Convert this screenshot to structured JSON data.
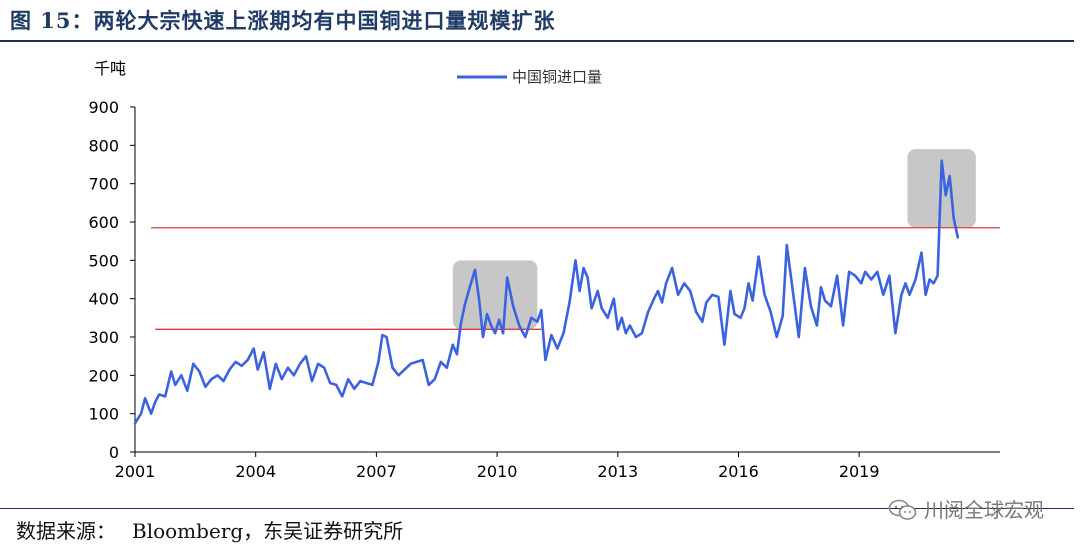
{
  "title": "图 15：两轮大宗快速上涨期均有中国铜进口量规模扩张",
  "source": {
    "label": "数据来源：",
    "text": "Bloomberg，东吴证券研究所"
  },
  "watermark": {
    "text": "川阅全球宏观",
    "icon": "wechat-icon"
  },
  "chart_data": {
    "type": "line",
    "ylabel": "千吨",
    "ylim": [
      0,
      900
    ],
    "yticks": [
      0,
      100,
      200,
      300,
      400,
      500,
      600,
      700,
      800,
      900
    ],
    "xlim": [
      2001,
      2022.5
    ],
    "xticks": [
      2001,
      2004,
      2007,
      2010,
      2013,
      2016,
      2019
    ],
    "xtick_labels": [
      "2001",
      "2004",
      "2007",
      "2010",
      "2013",
      "2016",
      "2019"
    ],
    "grid": false,
    "legend": "top-center",
    "series": [
      {
        "name": "中国铜进口量",
        "color": "#3b63e0",
        "x": [
          2001.0,
          2001.15,
          2001.25,
          2001.4,
          2001.5,
          2001.6,
          2001.75,
          2001.9,
          2002.0,
          2002.15,
          2002.3,
          2002.45,
          2002.6,
          2002.75,
          2002.9,
          2003.05,
          2003.2,
          2003.35,
          2003.5,
          2003.65,
          2003.8,
          2003.95,
          2004.05,
          2004.2,
          2004.35,
          2004.5,
          2004.65,
          2004.8,
          2004.95,
          2005.1,
          2005.25,
          2005.4,
          2005.55,
          2005.7,
          2005.85,
          2006.0,
          2006.15,
          2006.3,
          2006.45,
          2006.6,
          2006.75,
          2006.9,
          2007.05,
          2007.15,
          2007.25,
          2007.4,
          2007.55,
          2007.7,
          2007.85,
          2008.0,
          2008.15,
          2008.3,
          2008.45,
          2008.6,
          2008.75,
          2008.9,
          2009.0,
          2009.1,
          2009.2,
          2009.35,
          2009.45,
          2009.55,
          2009.65,
          2009.75,
          2009.85,
          2009.95,
          2010.05,
          2010.15,
          2010.25,
          2010.4,
          2010.55,
          2010.7,
          2010.85,
          2011.0,
          2011.1,
          2011.2,
          2011.35,
          2011.5,
          2011.65,
          2011.8,
          2011.95,
          2012.05,
          2012.15,
          2012.25,
          2012.35,
          2012.5,
          2012.6,
          2012.75,
          2012.9,
          2013.0,
          2013.1,
          2013.2,
          2013.3,
          2013.45,
          2013.6,
          2013.75,
          2013.9,
          2014.0,
          2014.1,
          2014.2,
          2014.35,
          2014.5,
          2014.65,
          2014.8,
          2014.95,
          2015.1,
          2015.2,
          2015.35,
          2015.5,
          2015.65,
          2015.8,
          2015.9,
          2016.05,
          2016.15,
          2016.25,
          2016.35,
          2016.5,
          2016.65,
          2016.8,
          2016.95,
          2017.1,
          2017.2,
          2017.35,
          2017.5,
          2017.65,
          2017.8,
          2017.95,
          2018.05,
          2018.15,
          2018.3,
          2018.45,
          2018.6,
          2018.75,
          2018.9,
          2019.05,
          2019.15,
          2019.3,
          2019.45,
          2019.6,
          2019.75,
          2019.9,
          2020.05,
          2020.15,
          2020.25,
          2020.4,
          2020.55,
          2020.65,
          2020.75,
          2020.85,
          2020.95,
          2021.05,
          2021.15,
          2021.25,
          2021.35,
          2021.45
        ],
        "values": [
          75,
          100,
          140,
          100,
          130,
          150,
          145,
          210,
          175,
          200,
          160,
          230,
          210,
          170,
          190,
          200,
          185,
          215,
          235,
          225,
          240,
          270,
          215,
          260,
          165,
          230,
          190,
          220,
          200,
          230,
          250,
          185,
          230,
          220,
          180,
          175,
          145,
          190,
          165,
          185,
          180,
          175,
          235,
          305,
          300,
          220,
          200,
          215,
          230,
          235,
          240,
          175,
          190,
          235,
          220,
          280,
          255,
          335,
          385,
          440,
          475,
          400,
          300,
          360,
          330,
          310,
          345,
          310,
          455,
          380,
          330,
          300,
          350,
          340,
          370,
          240,
          305,
          270,
          310,
          390,
          500,
          420,
          480,
          455,
          375,
          420,
          375,
          350,
          400,
          320,
          350,
          310,
          330,
          300,
          310,
          365,
          400,
          420,
          390,
          440,
          480,
          410,
          440,
          420,
          365,
          340,
          390,
          410,
          405,
          280,
          420,
          360,
          350,
          375,
          440,
          395,
          510,
          410,
          365,
          300,
          355,
          540,
          420,
          300,
          480,
          380,
          330,
          430,
          395,
          380,
          460,
          330,
          470,
          460,
          440,
          470,
          450,
          470,
          410,
          460,
          310,
          410,
          440,
          410,
          450,
          520,
          410,
          450,
          440,
          460,
          760,
          670,
          720,
          610,
          560
        ]
      }
    ],
    "annotations": [
      {
        "type": "hline",
        "y": 320,
        "x_from": 2001.5,
        "x_to": 2011.1,
        "color": "#e03a3a"
      },
      {
        "type": "hline",
        "y": 585,
        "x_from": 2001.4,
        "x_to": 2022.5,
        "color": "#e03a3a"
      },
      {
        "type": "box",
        "x_from": 2008.9,
        "x_to": 2011.0,
        "y_from": 320,
        "y_to": 500,
        "color": "#bdbdbd"
      },
      {
        "type": "box",
        "x_from": 2020.2,
        "x_to": 2021.9,
        "y_from": 585,
        "y_to": 790,
        "color": "#bdbdbd"
      }
    ]
  }
}
